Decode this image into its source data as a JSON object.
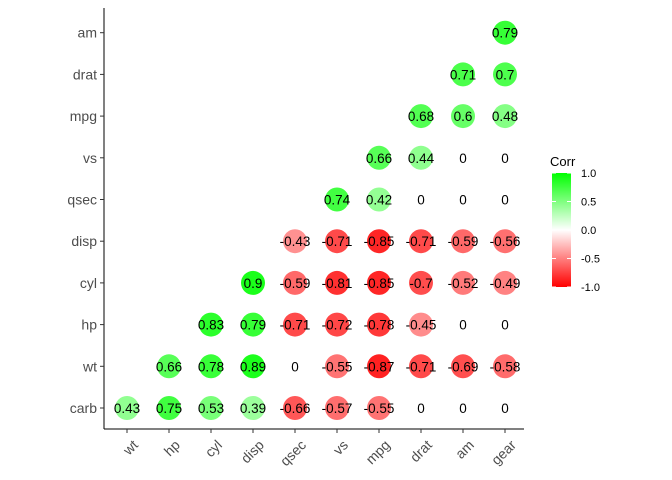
{
  "chart_data": {
    "type": "heatmap",
    "style": "circle correlogram, lower triangle",
    "x_labels": [
      "wt",
      "hp",
      "cyl",
      "disp",
      "qsec",
      "vs",
      "mpg",
      "drat",
      "am",
      "gear"
    ],
    "y_labels": [
      "carb",
      "wt",
      "hp",
      "cyl",
      "disp",
      "qsec",
      "vs",
      "mpg",
      "drat",
      "am"
    ],
    "cells": [
      {
        "x": "wt",
        "y": "carb",
        "value": 0.43
      },
      {
        "x": "hp",
        "y": "carb",
        "value": 0.75
      },
      {
        "x": "cyl",
        "y": "carb",
        "value": 0.53
      },
      {
        "x": "disp",
        "y": "carb",
        "value": 0.39
      },
      {
        "x": "qsec",
        "y": "carb",
        "value": -0.66
      },
      {
        "x": "vs",
        "y": "carb",
        "value": -0.57
      },
      {
        "x": "mpg",
        "y": "carb",
        "value": -0.55
      },
      {
        "x": "drat",
        "y": "carb",
        "value": 0
      },
      {
        "x": "am",
        "y": "carb",
        "value": 0
      },
      {
        "x": "gear",
        "y": "carb",
        "value": 0
      },
      {
        "x": "hp",
        "y": "wt",
        "value": 0.66
      },
      {
        "x": "cyl",
        "y": "wt",
        "value": 0.78
      },
      {
        "x": "disp",
        "y": "wt",
        "value": 0.89
      },
      {
        "x": "qsec",
        "y": "wt",
        "value": 0
      },
      {
        "x": "vs",
        "y": "wt",
        "value": -0.55
      },
      {
        "x": "mpg",
        "y": "wt",
        "value": -0.87
      },
      {
        "x": "drat",
        "y": "wt",
        "value": -0.71
      },
      {
        "x": "am",
        "y": "wt",
        "value": -0.69
      },
      {
        "x": "gear",
        "y": "wt",
        "value": -0.58
      },
      {
        "x": "cyl",
        "y": "hp",
        "value": 0.83
      },
      {
        "x": "disp",
        "y": "hp",
        "value": 0.79
      },
      {
        "x": "qsec",
        "y": "hp",
        "value": -0.71
      },
      {
        "x": "vs",
        "y": "hp",
        "value": -0.72
      },
      {
        "x": "mpg",
        "y": "hp",
        "value": -0.78
      },
      {
        "x": "drat",
        "y": "hp",
        "value": -0.45
      },
      {
        "x": "am",
        "y": "hp",
        "value": 0
      },
      {
        "x": "gear",
        "y": "hp",
        "value": 0
      },
      {
        "x": "disp",
        "y": "cyl",
        "value": 0.9
      },
      {
        "x": "qsec",
        "y": "cyl",
        "value": -0.59
      },
      {
        "x": "vs",
        "y": "cyl",
        "value": -0.81
      },
      {
        "x": "mpg",
        "y": "cyl",
        "value": -0.85
      },
      {
        "x": "drat",
        "y": "cyl",
        "value": -0.7
      },
      {
        "x": "am",
        "y": "cyl",
        "value": -0.52
      },
      {
        "x": "gear",
        "y": "cyl",
        "value": -0.49
      },
      {
        "x": "qsec",
        "y": "disp",
        "value": -0.43
      },
      {
        "x": "vs",
        "y": "disp",
        "value": -0.71
      },
      {
        "x": "mpg",
        "y": "disp",
        "value": -0.85
      },
      {
        "x": "drat",
        "y": "disp",
        "value": -0.71
      },
      {
        "x": "am",
        "y": "disp",
        "value": -0.59
      },
      {
        "x": "gear",
        "y": "disp",
        "value": -0.56
      },
      {
        "x": "vs",
        "y": "qsec",
        "value": 0.74
      },
      {
        "x": "mpg",
        "y": "qsec",
        "value": 0.42
      },
      {
        "x": "drat",
        "y": "qsec",
        "value": 0
      },
      {
        "x": "am",
        "y": "qsec",
        "value": 0
      },
      {
        "x": "gear",
        "y": "qsec",
        "value": 0
      },
      {
        "x": "mpg",
        "y": "vs",
        "value": 0.66
      },
      {
        "x": "drat",
        "y": "vs",
        "value": 0.44
      },
      {
        "x": "am",
        "y": "vs",
        "value": 0
      },
      {
        "x": "gear",
        "y": "vs",
        "value": 0
      },
      {
        "x": "drat",
        "y": "mpg",
        "value": 0.68
      },
      {
        "x": "am",
        "y": "mpg",
        "value": 0.6
      },
      {
        "x": "gear",
        "y": "mpg",
        "value": 0.48
      },
      {
        "x": "am",
        "y": "drat",
        "value": 0.71
      },
      {
        "x": "gear",
        "y": "drat",
        "value": 0.7
      },
      {
        "x": "gear",
        "y": "am",
        "value": 0.79
      }
    ],
    "legend": {
      "title": "Corr",
      "position": "right",
      "range": [
        -1,
        1
      ],
      "ticks": [
        1.0,
        0.5,
        0.0,
        -0.5,
        -1.0
      ],
      "tick_labels": [
        "1.0",
        "0.5",
        "0.0",
        "-0.5",
        "-1.0"
      ]
    },
    "colors": {
      "high": "#00ff00",
      "mid": "#ffffff",
      "low": "#ff0000"
    },
    "xlabel": "",
    "ylabel": "",
    "title": ""
  }
}
